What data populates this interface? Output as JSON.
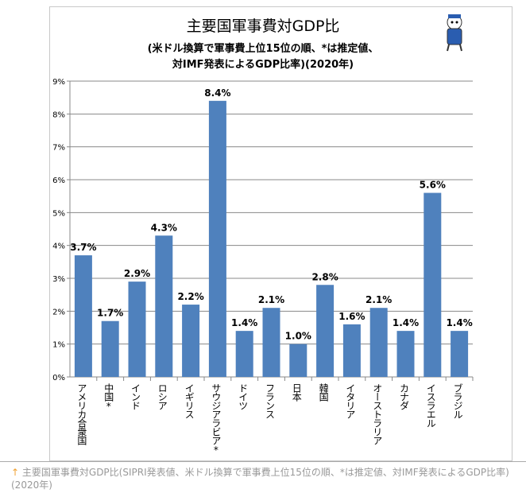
{
  "chart_data": {
    "type": "bar",
    "title": "主要国軍事費対GDP比",
    "subtitle_line1": "(米ドル換算で軍事費上位15位の順、*は推定値、",
    "subtitle_line2": "対IMF発表によるGDP比率)(2020年)",
    "categories": [
      "アメリカ合衆国",
      "中国*",
      "インド",
      "ロシア",
      "イギリス",
      "サウジアラビア*",
      "ドイツ",
      "フランス",
      "日本",
      "韓国",
      "イタリア",
      "オーストラリア",
      "カナダ",
      "イスラエル",
      "ブラジル"
    ],
    "values": [
      3.7,
      1.7,
      2.9,
      4.3,
      2.2,
      8.4,
      1.4,
      2.1,
      1.0,
      2.8,
      1.6,
      2.1,
      1.4,
      5.6,
      1.4
    ],
    "data_labels": [
      "3.7%",
      "1.7%",
      "2.9%",
      "4.3%",
      "2.2%",
      "8.4%",
      "1.4%",
      "2.1%",
      "1.0%",
      "2.8%",
      "1.6%",
      "2.1%",
      "1.4%",
      "5.6%",
      "1.4%"
    ],
    "yticks": [
      "0%",
      "1%",
      "2%",
      "3%",
      "4%",
      "5%",
      "6%",
      "7%",
      "8%",
      "9%"
    ],
    "ylim": [
      0,
      9
    ],
    "xlabel": "",
    "ylabel": "",
    "grid": true,
    "bar_color": "#4f81bd"
  },
  "caption": {
    "arrow": "↑",
    "text": "主要国軍事費対GDP比(SIPRI発表値、米ドル換算で軍事費上位15位の順、*は推定値、対IMF発表によるGDP比率)(2020年)"
  }
}
